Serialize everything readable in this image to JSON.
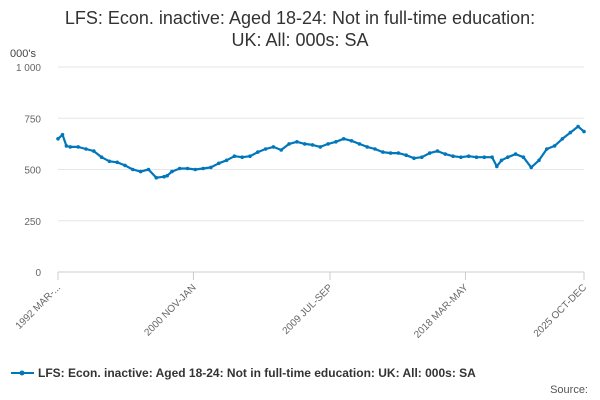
{
  "chart_data": {
    "type": "line",
    "title_line1": "LFS: Econ. inactive: Aged 18-24: Not in full-time education:",
    "title_line2": "UK: All: 000s: SA",
    "yunit": "000's",
    "ylim": [
      0,
      1000
    ],
    "y_ticks": [
      "0",
      "250",
      "500",
      "750",
      "1 000"
    ],
    "y_tick_values": [
      0,
      250,
      500,
      750,
      1000
    ],
    "x_tick_labels": [
      "1992 MAR-...",
      "2000 NOV-JAN",
      "2009 JUL-SEP",
      "2018 MAR-MAY",
      "2025 OCT-DEC"
    ],
    "x_tick_dates": [
      1992.21,
      2000.88,
      2009.62,
      2018.29,
      2025.88
    ],
    "grid": "horizontal",
    "legend_position": "bottom",
    "series": [
      {
        "name": "LFS: Econ. inactive: Aged 18-24: Not in full-time education: UK: All: 000s: SA",
        "color": "#0077bb",
        "x": [
          1992.21,
          1992.5,
          1992.75,
          1993.0,
          1993.5,
          1994.0,
          1994.5,
          1995.0,
          1995.5,
          1996.0,
          1996.5,
          1997.0,
          1997.5,
          1998.0,
          1998.5,
          1999.0,
          1999.2,
          1999.5,
          2000.0,
          2000.5,
          2001.0,
          2001.5,
          2002.0,
          2002.5,
          2003.0,
          2003.5,
          2004.0,
          2004.5,
          2005.0,
          2005.5,
          2006.0,
          2006.5,
          2007.0,
          2007.5,
          2008.0,
          2008.5,
          2009.0,
          2009.5,
          2010.0,
          2010.5,
          2011.0,
          2011.5,
          2012.0,
          2012.5,
          2013.0,
          2013.5,
          2014.0,
          2014.5,
          2015.0,
          2015.5,
          2016.0,
          2016.5,
          2017.0,
          2017.5,
          2018.0,
          2018.5,
          2019.0,
          2019.5,
          2020.0,
          2020.3,
          2020.6,
          2021.0,
          2021.5,
          2022.0,
          2022.5,
          2023.0,
          2023.5,
          2024.0,
          2024.5,
          2025.0,
          2025.5,
          2025.88
        ],
        "y": [
          650,
          670,
          615,
          610,
          610,
          600,
          590,
          560,
          540,
          535,
          520,
          500,
          490,
          500,
          460,
          465,
          470,
          490,
          505,
          505,
          500,
          505,
          510,
          530,
          545,
          565,
          560,
          565,
          585,
          600,
          610,
          595,
          625,
          635,
          625,
          620,
          610,
          625,
          635,
          650,
          640,
          625,
          610,
          600,
          585,
          580,
          580,
          570,
          555,
          560,
          580,
          590,
          575,
          565,
          560,
          565,
          560,
          560,
          560,
          515,
          545,
          560,
          575,
          560,
          510,
          545,
          600,
          615,
          650,
          680,
          710,
          685
        ]
      }
    ]
  },
  "footer": {
    "source_label": "Source:"
  }
}
